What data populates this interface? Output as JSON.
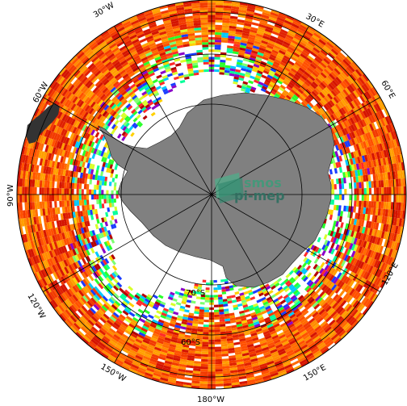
{
  "map": {
    "projection": "south-polar-stereographic",
    "colors": {
      "background": "#ffffff",
      "land": "#808080",
      "grid": "#000000",
      "palette_outer": [
        "#ff6a00",
        "#ff5000",
        "#f23a00",
        "#ff8c00",
        "#e02000",
        "#ffa000",
        "#d41400"
      ],
      "palette_inner": [
        "#00c8ff",
        "#1a3cff",
        "#7cff70",
        "#d8ff2a",
        "#ffd000",
        "#8a00c8",
        "#b40000",
        "#00ff9a",
        "#ff2a2a",
        "#2aff2a"
      ]
    },
    "lon_labels": [
      "30°W",
      "30°E",
      "60°W",
      "60°E",
      "90°W",
      "120°W",
      "120°E",
      "150°W",
      "150°E",
      "180°W"
    ],
    "lat_labels": [
      "60°S",
      "70°S"
    ],
    "watermark": {
      "line1": "smos",
      "line2": "pi-mep"
    }
  }
}
